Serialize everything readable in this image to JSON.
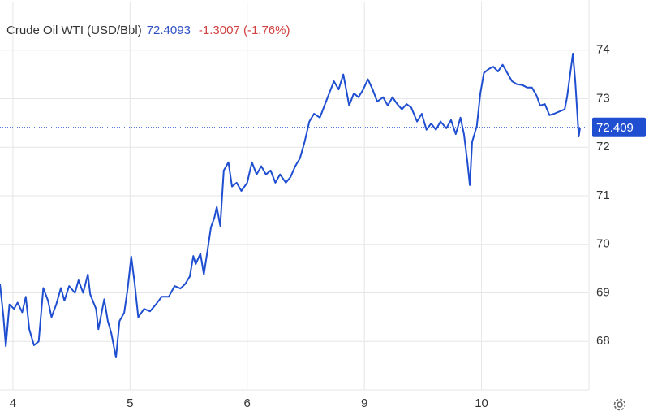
{
  "chart_data": {
    "type": "line",
    "title": "Crude Oil WTI (USD/Bbl)",
    "last": 72.4093,
    "change": "-1.3007 (-1.76%)",
    "price_line": 72.409,
    "color": "#1f4fd0",
    "grid": true,
    "xlim": [
      -0.11,
      4.91
    ],
    "ylim": [
      67,
      75
    ],
    "xticks": [
      {
        "value": 0,
        "label": "4"
      },
      {
        "value": 1,
        "label": "5"
      },
      {
        "value": 2,
        "label": "6"
      },
      {
        "value": 3,
        "label": "9"
      },
      {
        "value": 4,
        "label": "10"
      }
    ],
    "yticks": [
      68,
      69,
      70,
      71,
      72,
      73,
      74
    ],
    "x": [
      -0.11,
      -0.08,
      -0.06,
      -0.03,
      0.01,
      0.04,
      0.08,
      0.11,
      0.14,
      0.18,
      0.22,
      0.26,
      0.3,
      0.33,
      0.37,
      0.41,
      0.44,
      0.48,
      0.53,
      0.56,
      0.6,
      0.64,
      0.66,
      0.71,
      0.73,
      0.78,
      0.81,
      0.84,
      0.88,
      0.91,
      0.95,
      0.98,
      1.01,
      1.04,
      1.07,
      1.12,
      1.17,
      1.22,
      1.27,
      1.33,
      1.38,
      1.43,
      1.47,
      1.51,
      1.54,
      1.56,
      1.6,
      1.63,
      1.66,
      1.69,
      1.72,
      1.74,
      1.77,
      1.8,
      1.84,
      1.87,
      1.91,
      1.95,
      2.0,
      2.04,
      2.08,
      2.12,
      2.16,
      2.2,
      2.24,
      2.28,
      2.33,
      2.37,
      2.41,
      2.45,
      2.49,
      2.53,
      2.57,
      2.62,
      2.66,
      2.7,
      2.74,
      2.78,
      2.82,
      2.87,
      2.91,
      2.95,
      2.99,
      3.03,
      3.07,
      3.11,
      3.16,
      3.2,
      3.24,
      3.28,
      3.32,
      3.36,
      3.4,
      3.45,
      3.49,
      3.53,
      3.57,
      3.61,
      3.65,
      3.7,
      3.74,
      3.78,
      3.82,
      3.85,
      3.88,
      3.9,
      3.92,
      3.96,
      3.99,
      4.02,
      4.06,
      4.1,
      4.14,
      4.18,
      4.22,
      4.26,
      4.3,
      4.35,
      4.39,
      4.43,
      4.47,
      4.5,
      4.54,
      4.58,
      4.62,
      4.66,
      4.71,
      4.73,
      4.78,
      4.8,
      4.83,
      4.84
    ],
    "values": [
      69.18,
      68.5,
      67.9,
      68.76,
      68.67,
      68.8,
      68.6,
      68.92,
      68.25,
      67.92,
      68.0,
      69.1,
      68.84,
      68.5,
      68.76,
      69.1,
      68.84,
      69.14,
      69.0,
      69.26,
      69.0,
      69.38,
      68.97,
      68.67,
      68.25,
      68.87,
      68.42,
      68.17,
      67.67,
      68.42,
      68.59,
      69.09,
      69.75,
      69.18,
      68.5,
      68.67,
      68.62,
      68.76,
      68.92,
      68.92,
      69.14,
      69.09,
      69.18,
      69.34,
      69.76,
      69.59,
      69.81,
      69.38,
      69.85,
      70.35,
      70.55,
      70.77,
      70.38,
      71.52,
      71.69,
      71.19,
      71.27,
      71.1,
      71.27,
      71.69,
      71.44,
      71.61,
      71.44,
      71.52,
      71.27,
      71.44,
      71.27,
      71.39,
      71.61,
      71.77,
      72.11,
      72.53,
      72.69,
      72.61,
      72.86,
      73.11,
      73.36,
      73.19,
      73.5,
      72.86,
      73.11,
      73.03,
      73.19,
      73.4,
      73.19,
      72.94,
      73.03,
      72.86,
      73.03,
      72.89,
      72.78,
      72.89,
      72.82,
      72.53,
      72.69,
      72.36,
      72.49,
      72.36,
      72.53,
      72.39,
      72.56,
      72.27,
      72.61,
      72.27,
      71.69,
      71.22,
      72.11,
      72.44,
      73.11,
      73.53,
      73.61,
      73.66,
      73.56,
      73.7,
      73.53,
      73.36,
      73.3,
      73.28,
      73.23,
      73.23,
      73.06,
      72.86,
      72.89,
      72.66,
      72.69,
      72.73,
      72.78,
      73.03,
      73.93,
      73.36,
      72.22,
      72.39
    ]
  }
}
